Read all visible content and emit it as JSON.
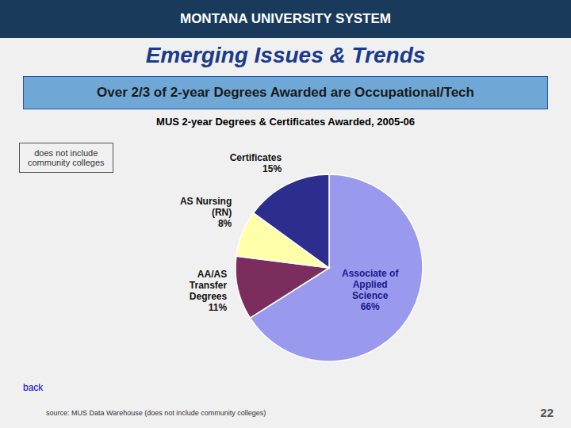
{
  "chart_data": {
    "type": "pie",
    "title": "Emerging Issues & Trends",
    "subtitle": "Over 2/3 of 2-year Degrees Awarded are Occupational/Tech",
    "categories": [
      "Associate of\nApplied\nScience",
      "AA/AS\nTransfer\nDegrees",
      "AS Nursing\n(RN)",
      "Certificates"
    ],
    "values": [
      66,
      11,
      8,
      15
    ],
    "value_labels": [
      "66%",
      "11%",
      "8%",
      "15%"
    ],
    "colors": [
      "#9999ee",
      "#7b2d5e",
      "#ffffaa",
      "#2d2d8e"
    ],
    "data_labels": true,
    "annotations": [
      "MONTANA UNIVERSITY SYSTEM",
      "MUS 2-year Degrees & Certificates Awarded, 2005-06",
      "does not include\ncommunity colleges",
      "source: MUS Data Warehouse (does not include community colleges)",
      "back",
      "22"
    ]
  }
}
